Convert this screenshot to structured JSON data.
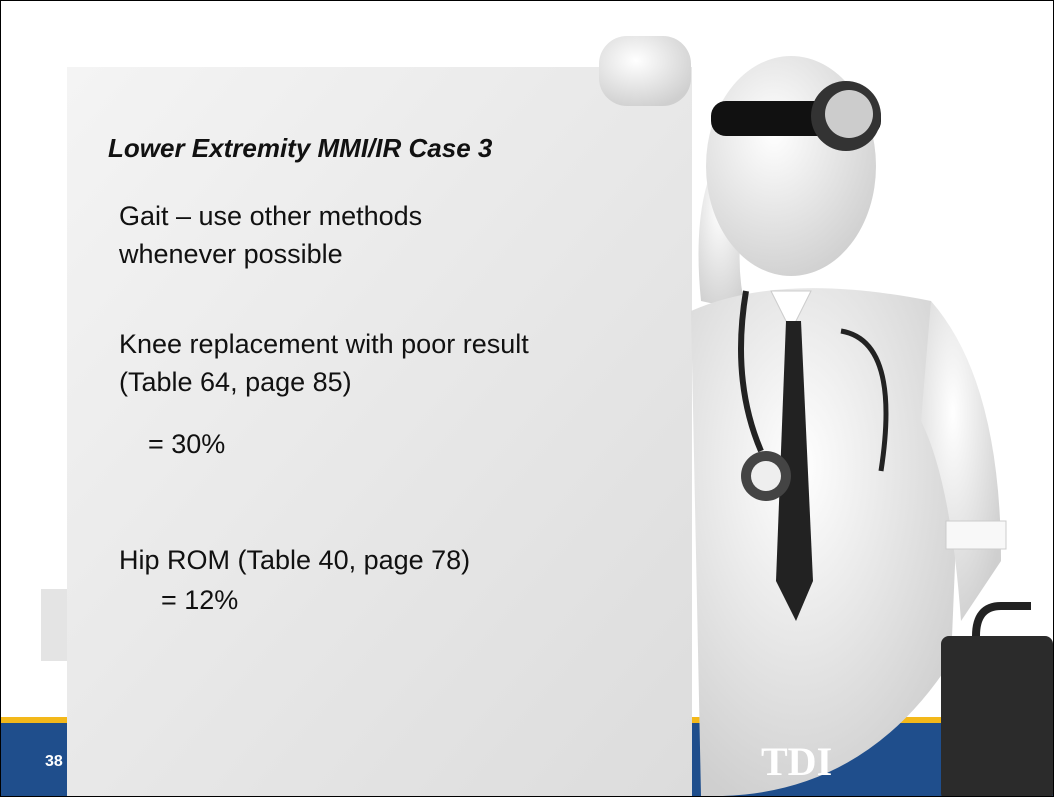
{
  "title": "Lower Extremity MMI/IR Case 3",
  "bullets": [
    {
      "lines": [
        "Gait – use other methods",
        "whenever possible"
      ]
    },
    {
      "lines": [
        "Knee replacement with poor result",
        "(Table 64, page 85)"
      ],
      "result": "= 30%"
    },
    {
      "lines": [
        "Hip ROM (Table 40, page 78)"
      ],
      "result": "= 12%"
    }
  ],
  "footer": {
    "slide_number": "38",
    "logo": "TDI"
  }
}
